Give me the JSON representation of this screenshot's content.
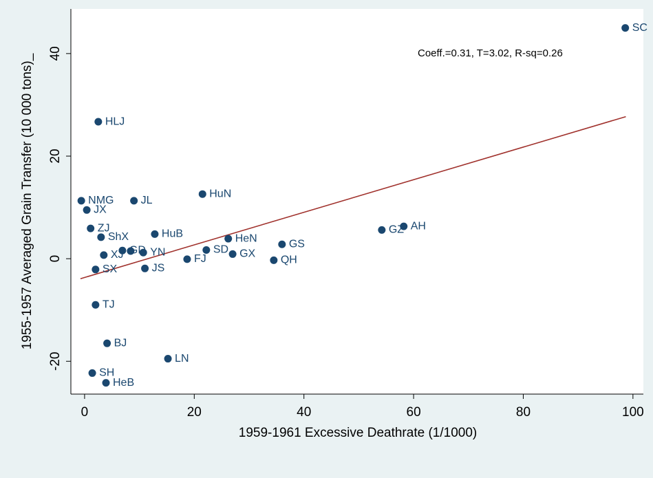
{
  "chart_data": {
    "type": "scatter",
    "xlabel": "1959-1961 Excessive Deathrate (1/1000)",
    "ylabel": "1955-1957 Averaged Grain Transfer (10 000 tons)_",
    "annotation": "Coeff.=0.31, T=3.02, R-sq=0.26",
    "xlim": [
      -2.5,
      101.9
    ],
    "ylim": [
      -26.4,
      48.7
    ],
    "xticks": [
      0,
      20,
      40,
      60,
      80,
      100
    ],
    "yticks": [
      -20,
      0,
      20,
      40
    ],
    "color": "#1a476f",
    "labels": [
      "SC",
      "HLJ",
      "NMG",
      "JX",
      "ZJ",
      "ShX",
      "XJ",
      "SX",
      "TJ",
      "BJ",
      "SH",
      "HeB",
      "JL",
      "HuB",
      "GD",
      null,
      "YN",
      "JS",
      "LN",
      "FJ",
      "HuN",
      "SD",
      "HeN",
      "GX",
      "QH",
      "GS",
      "GZ",
      "AH"
    ],
    "x": [
      98.6,
      2.5,
      -0.6,
      0.4,
      1.1,
      3.0,
      3.5,
      2.0,
      2.0,
      4.1,
      1.4,
      3.9,
      9.0,
      12.8,
      6.9,
      8.4,
      10.7,
      11.0,
      15.2,
      18.7,
      21.5,
      22.2,
      26.2,
      27.0,
      34.5,
      36.0,
      54.2,
      58.2
    ],
    "y": [
      45.0,
      26.7,
      11.3,
      9.5,
      5.9,
      4.2,
      0.7,
      -2.1,
      -9.0,
      -16.5,
      -22.3,
      -24.2,
      11.3,
      4.8,
      1.6,
      1.5,
      1.2,
      -1.9,
      -19.5,
      -0.1,
      12.6,
      1.7,
      3.9,
      0.9,
      -0.3,
      2.8,
      5.6,
      6.3
    ],
    "fit_line": {
      "x": [
        -0.75,
        98.7
      ],
      "y": [
        -3.9,
        27.7
      ],
      "color": "#a0312c"
    }
  }
}
